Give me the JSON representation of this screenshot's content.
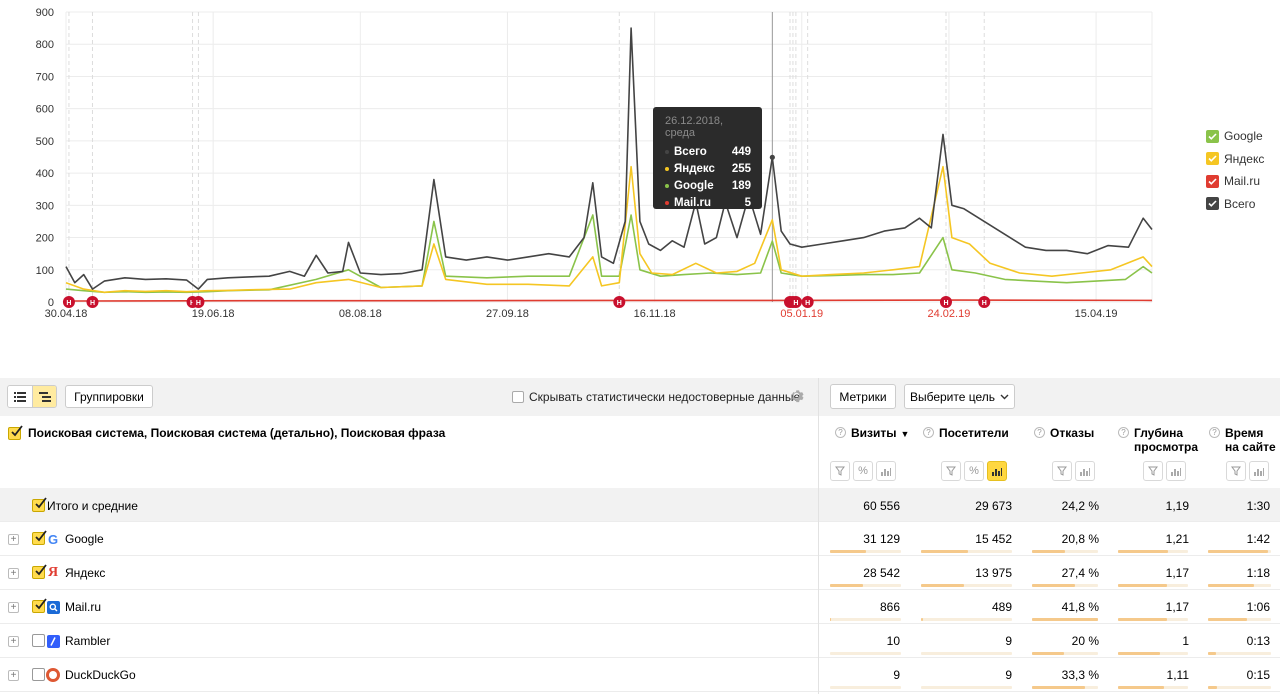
{
  "chart_data": {
    "type": "line",
    "ylim": [
      0,
      900
    ],
    "y_ticks": [
      "0",
      "100",
      "200",
      "300",
      "400",
      "500",
      "600",
      "700",
      "800",
      "900"
    ],
    "x_tick_labels": [
      "30.04.18",
      "19.06.18",
      "08.08.18",
      "27.09.18",
      "16.11.18",
      "05.01.19",
      "24.02.19",
      "15.04.19"
    ],
    "x_tick_dates": [
      "2018-04-30",
      "2018-06-19",
      "2018-08-08",
      "2018-09-27",
      "2018-11-16",
      "2019-01-05",
      "2019-02-24",
      "2019-04-15"
    ],
    "x_tick_colors": [
      "#333333",
      "#333333",
      "#333333",
      "#333333",
      "#333333",
      "#e03c31",
      "#e03c31",
      "#333333"
    ],
    "x_start": "2018-04-30",
    "x_end": "2019-05-04",
    "series": [
      {
        "name": "Всего",
        "color": "#444444",
        "points": [
          [
            "2018-04-30",
            110
          ],
          [
            "2018-05-03",
            60
          ],
          [
            "2018-05-06",
            85
          ],
          [
            "2018-05-09",
            40
          ],
          [
            "2018-05-13",
            65
          ],
          [
            "2018-05-20",
            75
          ],
          [
            "2018-05-27",
            70
          ],
          [
            "2018-06-03",
            72
          ],
          [
            "2018-06-10",
            68
          ],
          [
            "2018-06-14",
            40
          ],
          [
            "2018-06-17",
            70
          ],
          [
            "2018-06-24",
            75
          ],
          [
            "2018-07-01",
            78
          ],
          [
            "2018-07-08",
            80
          ],
          [
            "2018-07-15",
            95
          ],
          [
            "2018-07-20",
            80
          ],
          [
            "2018-07-24",
            145
          ],
          [
            "2018-07-28",
            90
          ],
          [
            "2018-08-02",
            95
          ],
          [
            "2018-08-04",
            185
          ],
          [
            "2018-08-08",
            90
          ],
          [
            "2018-08-15",
            85
          ],
          [
            "2018-08-22",
            88
          ],
          [
            "2018-08-29",
            100
          ],
          [
            "2018-09-02",
            380
          ],
          [
            "2018-09-06",
            140
          ],
          [
            "2018-09-13",
            130
          ],
          [
            "2018-09-20",
            140
          ],
          [
            "2018-09-27",
            130
          ],
          [
            "2018-10-04",
            140
          ],
          [
            "2018-10-11",
            150
          ],
          [
            "2018-10-18",
            140
          ],
          [
            "2018-10-23",
            200
          ],
          [
            "2018-10-26",
            370
          ],
          [
            "2018-10-29",
            140
          ],
          [
            "2018-11-02",
            120
          ],
          [
            "2018-11-06",
            250
          ],
          [
            "2018-11-08",
            850
          ],
          [
            "2018-11-11",
            250
          ],
          [
            "2018-11-14",
            180
          ],
          [
            "2018-11-18",
            160
          ],
          [
            "2018-11-22",
            190
          ],
          [
            "2018-11-26",
            170
          ],
          [
            "2018-11-30",
            310
          ],
          [
            "2018-12-03",
            180
          ],
          [
            "2018-12-07",
            200
          ],
          [
            "2018-12-10",
            310
          ],
          [
            "2018-12-14",
            200
          ],
          [
            "2018-12-18",
            330
          ],
          [
            "2018-12-22",
            210
          ],
          [
            "2018-12-26",
            449
          ],
          [
            "2018-12-29",
            220
          ],
          [
            "2019-01-01",
            180
          ],
          [
            "2019-01-05",
            170
          ],
          [
            "2019-01-12",
            180
          ],
          [
            "2019-01-19",
            190
          ],
          [
            "2019-01-26",
            200
          ],
          [
            "2019-02-02",
            220
          ],
          [
            "2019-02-09",
            230
          ],
          [
            "2019-02-14",
            260
          ],
          [
            "2019-02-18",
            230
          ],
          [
            "2019-02-22",
            520
          ],
          [
            "2019-02-25",
            300
          ],
          [
            "2019-03-01",
            290
          ],
          [
            "2019-03-08",
            250
          ],
          [
            "2019-03-15",
            210
          ],
          [
            "2019-03-22",
            170
          ],
          [
            "2019-03-29",
            160
          ],
          [
            "2019-04-05",
            160
          ],
          [
            "2019-04-12",
            150
          ],
          [
            "2019-04-19",
            175
          ],
          [
            "2019-04-26",
            170
          ],
          [
            "2019-05-01",
            260
          ],
          [
            "2019-05-04",
            225
          ]
        ]
      },
      {
        "name": "Яндекс",
        "color": "#f5c623",
        "points": [
          [
            "2018-04-30",
            60
          ],
          [
            "2018-05-06",
            40
          ],
          [
            "2018-05-13",
            30
          ],
          [
            "2018-05-20",
            35
          ],
          [
            "2018-05-27",
            33
          ],
          [
            "2018-06-03",
            35
          ],
          [
            "2018-06-10",
            32
          ],
          [
            "2018-06-17",
            35
          ],
          [
            "2018-06-24",
            36
          ],
          [
            "2018-07-01",
            38
          ],
          [
            "2018-07-15",
            40
          ],
          [
            "2018-07-24",
            60
          ],
          [
            "2018-08-04",
            70
          ],
          [
            "2018-08-15",
            45
          ],
          [
            "2018-08-29",
            50
          ],
          [
            "2018-09-02",
            180
          ],
          [
            "2018-09-06",
            70
          ],
          [
            "2018-09-20",
            55
          ],
          [
            "2018-10-04",
            55
          ],
          [
            "2018-10-18",
            50
          ],
          [
            "2018-10-26",
            140
          ],
          [
            "2018-10-29",
            50
          ],
          [
            "2018-11-04",
            60
          ],
          [
            "2018-11-08",
            420
          ],
          [
            "2018-11-11",
            150
          ],
          [
            "2018-11-15",
            90
          ],
          [
            "2018-11-22",
            85
          ],
          [
            "2018-11-30",
            120
          ],
          [
            "2018-12-07",
            90
          ],
          [
            "2018-12-14",
            95
          ],
          [
            "2018-12-20",
            120
          ],
          [
            "2018-12-26",
            255
          ],
          [
            "2018-12-29",
            100
          ],
          [
            "2019-01-05",
            80
          ],
          [
            "2019-01-15",
            85
          ],
          [
            "2019-01-26",
            90
          ],
          [
            "2019-02-05",
            100
          ],
          [
            "2019-02-14",
            110
          ],
          [
            "2019-02-22",
            420
          ],
          [
            "2019-02-25",
            200
          ],
          [
            "2019-03-03",
            180
          ],
          [
            "2019-03-10",
            120
          ],
          [
            "2019-03-20",
            90
          ],
          [
            "2019-03-31",
            80
          ],
          [
            "2019-04-10",
            90
          ],
          [
            "2019-04-20",
            100
          ],
          [
            "2019-05-01",
            140
          ],
          [
            "2019-05-04",
            110
          ]
        ]
      },
      {
        "name": "Google",
        "color": "#8ac34a",
        "points": [
          [
            "2018-04-30",
            40
          ],
          [
            "2018-05-06",
            35
          ],
          [
            "2018-05-13",
            30
          ],
          [
            "2018-05-20",
            32
          ],
          [
            "2018-05-27",
            30
          ],
          [
            "2018-06-03",
            31
          ],
          [
            "2018-06-10",
            30
          ],
          [
            "2018-06-17",
            32
          ],
          [
            "2018-06-24",
            35
          ],
          [
            "2018-07-08",
            38
          ],
          [
            "2018-07-24",
            70
          ],
          [
            "2018-08-04",
            100
          ],
          [
            "2018-08-15",
            45
          ],
          [
            "2018-08-29",
            50
          ],
          [
            "2018-09-02",
            250
          ],
          [
            "2018-09-06",
            80
          ],
          [
            "2018-09-20",
            75
          ],
          [
            "2018-10-04",
            80
          ],
          [
            "2018-10-18",
            80
          ],
          [
            "2018-10-26",
            270
          ],
          [
            "2018-10-29",
            80
          ],
          [
            "2018-11-04",
            80
          ],
          [
            "2018-11-08",
            270
          ],
          [
            "2018-11-11",
            100
          ],
          [
            "2018-11-18",
            80
          ],
          [
            "2018-11-26",
            85
          ],
          [
            "2018-12-05",
            90
          ],
          [
            "2018-12-14",
            85
          ],
          [
            "2018-12-22",
            90
          ],
          [
            "2018-12-26",
            189
          ],
          [
            "2018-12-29",
            90
          ],
          [
            "2019-01-05",
            80
          ],
          [
            "2019-01-15",
            82
          ],
          [
            "2019-01-26",
            85
          ],
          [
            "2019-02-05",
            85
          ],
          [
            "2019-02-14",
            90
          ],
          [
            "2019-02-22",
            200
          ],
          [
            "2019-02-25",
            100
          ],
          [
            "2019-03-05",
            90
          ],
          [
            "2019-03-15",
            70
          ],
          [
            "2019-03-25",
            65
          ],
          [
            "2019-04-05",
            60
          ],
          [
            "2019-04-15",
            65
          ],
          [
            "2019-04-25",
            70
          ],
          [
            "2019-05-01",
            110
          ],
          [
            "2019-05-04",
            90
          ]
        ]
      },
      {
        "name": "Mail.ru",
        "color": "#e03c31",
        "points": [
          [
            "2018-04-30",
            3
          ],
          [
            "2018-06-30",
            4
          ],
          [
            "2018-08-30",
            4
          ],
          [
            "2018-10-30",
            5
          ],
          [
            "2018-12-26",
            5
          ],
          [
            "2019-02-28",
            6
          ],
          [
            "2019-05-04",
            5
          ]
        ]
      }
    ],
    "holiday_markers": [
      "2018-05-01",
      "2018-05-09",
      "2018-06-12",
      "2018-06-14",
      "2018-11-04",
      "2019-01-01",
      "2019-01-02",
      "2019-01-03",
      "2019-01-07",
      "2019-02-23",
      "2019-03-08"
    ],
    "vertical_marker_date": "2018-12-26"
  },
  "tooltip": {
    "date": "26.12.2018, среда",
    "rows": [
      {
        "label": "Всего",
        "value": "449",
        "color": "#444444"
      },
      {
        "label": "Яндекс",
        "value": "255",
        "color": "#f5c623"
      },
      {
        "label": "Google",
        "value": "189",
        "color": "#8ac34a"
      },
      {
        "label": "Mail.ru",
        "value": "5",
        "color": "#e03c31"
      }
    ]
  },
  "legend": [
    {
      "label": "Google",
      "color": "#8ac34a"
    },
    {
      "label": "Яндекс",
      "color": "#f5c623"
    },
    {
      "label": "Mail.ru",
      "color": "#e03c31"
    },
    {
      "label": "Всего",
      "color": "#444444"
    }
  ],
  "toolbar": {
    "groupings_label": "Группировки",
    "hide_unreliable_label": "Скрывать статистически недостоверные данные",
    "metrics_label": "Метрики",
    "goal_label": "Выберите цель"
  },
  "table": {
    "dimensions_title": "Поисковая система, Поисковая система (детально), Поисковая фраза",
    "columns": {
      "visits": "Визиты",
      "visitors": "Посетители",
      "bounces": "Отказы",
      "depth": "Глубина просмотра",
      "time": "Время на сайте"
    },
    "sort_indicator": "▼",
    "total": {
      "label": "Итого и средние",
      "visits": "60 556",
      "visitors": "29 673",
      "bounces": "24,2 %",
      "depth": "1,19",
      "time": "1:30"
    },
    "rows": [
      {
        "name": "Google",
        "icon": "google-icon",
        "checked": true,
        "visits": "31 129",
        "visitors": "15 452",
        "bounces": "20,8 %",
        "depth": "1,21",
        "time": "1:42",
        "bars": [
          0.51,
          0.52,
          0.5,
          0.72,
          0.95
        ]
      },
      {
        "name": "Яндекс",
        "icon": "yandex-icon",
        "checked": true,
        "visits": "28 542",
        "visitors": "13 975",
        "bounces": "27,4 %",
        "depth": "1,17",
        "time": "1:18",
        "bars": [
          0.47,
          0.47,
          0.65,
          0.7,
          0.73
        ]
      },
      {
        "name": "Mail.ru",
        "icon": "mailru-icon",
        "checked": true,
        "visits": "866",
        "visitors": "489",
        "bounces": "41,8 %",
        "depth": "1,17",
        "time": "1:06",
        "bars": [
          0.02,
          0.02,
          1.0,
          0.7,
          0.62
        ]
      },
      {
        "name": "Rambler",
        "icon": "rambler-icon",
        "checked": false,
        "visits": "10",
        "visitors": "9",
        "bounces": "20 %",
        "depth": "1",
        "time": "0:13",
        "bars": [
          0.0,
          0.0,
          0.48,
          0.6,
          0.12
        ]
      },
      {
        "name": "DuckDuckGo",
        "icon": "duckduckgo-icon",
        "checked": false,
        "visits": "9",
        "visitors": "9",
        "bounces": "33,3 %",
        "depth": "1,11",
        "time": "0:15",
        "bars": [
          0.0,
          0.0,
          0.8,
          0.66,
          0.14
        ]
      }
    ]
  }
}
